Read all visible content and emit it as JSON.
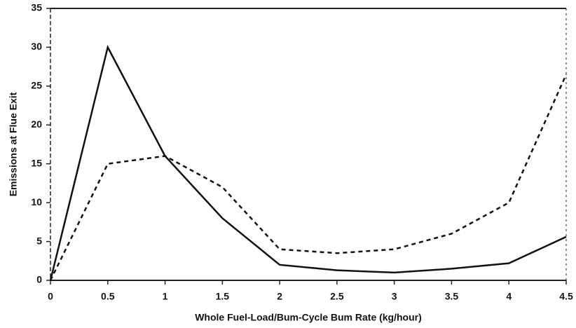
{
  "chart_data": {
    "type": "line",
    "x_label": "Whole Fuel-Load/Bum-Cycle Bum Rate (kg/hour)",
    "y_label": "Emissions at Flue Exit",
    "x": [
      0,
      0.5,
      1,
      1.5,
      2,
      2.5,
      3,
      3.5,
      4,
      4.5
    ],
    "series": [
      {
        "color": "#111111",
        "linestyle": "solid",
        "values": [
          0,
          30,
          16,
          8,
          2,
          1.3,
          1,
          1.5,
          2.2,
          5.6
        ]
      },
      {
        "color": "#111111",
        "linestyle": "dashed",
        "values": [
          0,
          15,
          16,
          12,
          4,
          3.5,
          4,
          6,
          10,
          26.5
        ]
      }
    ],
    "xlim": [
      0,
      4.5
    ],
    "xticks": [
      0,
      0.5,
      1,
      1.5,
      2,
      2.5,
      3,
      3.5,
      4,
      4.5
    ],
    "ylim": [
      0,
      35
    ],
    "yticks": [
      0,
      5,
      10,
      15,
      20,
      25,
      30,
      35
    ]
  }
}
